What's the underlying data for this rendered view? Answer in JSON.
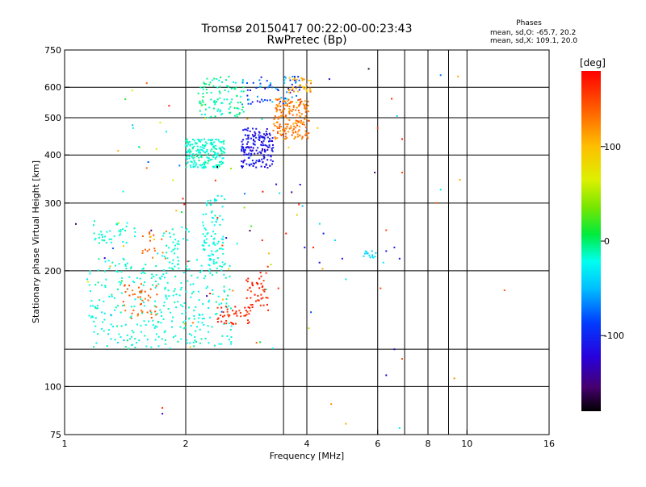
{
  "chart_data": {
    "type": "scatter",
    "title": "Tromsø 20150417 00:22:00-00:23:43",
    "subtitle": "RwPretec (Bp)",
    "xlabel": "Frequency [MHz]",
    "ylabel": "Stationary phase Virtual Height [km]",
    "x_scale": "log2",
    "y_scale": "log",
    "xlim": [
      1,
      16
    ],
    "ylim": [
      75,
      750
    ],
    "x_ticks": [
      1,
      2,
      4,
      6,
      8,
      10,
      16
    ],
    "x_tick_labels": [
      "1",
      "2",
      "4",
      "6",
      "8",
      "10",
      "16"
    ],
    "y_ticks": [
      75,
      100,
      200,
      300,
      400,
      500,
      600,
      750
    ],
    "y_tick_labels": [
      "75",
      "100",
      "200",
      "300",
      "400",
      "500",
      "600",
      "750"
    ],
    "x_gridlines": [
      2,
      4,
      6,
      8,
      10
    ],
    "x_minor_gridlines": [
      3.5,
      7,
      9
    ],
    "y_gridlines": [
      100,
      200,
      300,
      400,
      500,
      600
    ],
    "y_minor_gridlines": [
      125
    ],
    "grid": true,
    "stats_header": "Phases",
    "stats": [
      "mean, sd,O: -65.7, 20.2",
      "mean, sd,X: 109.1, 20.0"
    ],
    "colorbar": {
      "label": "[deg]",
      "range": [
        -180,
        180
      ],
      "ticks": [
        100,
        0,
        -100
      ],
      "tick_labels": [
        "100",
        "0",
        "-100"
      ]
    },
    "clusters": [
      {
        "x": [
          2.0,
          2.5
        ],
        "y": [
          370,
          440
        ],
        "phase": [
          -25,
          -5
        ],
        "n": 200
      },
      {
        "x": [
          2.15,
          2.8
        ],
        "y": [
          500,
          640
        ],
        "phase": [
          -25,
          5
        ],
        "n": 100
      },
      {
        "x": [
          2.75,
          3.3
        ],
        "y": [
          370,
          470
        ],
        "phase": [
          -130,
          -95
        ],
        "n": 170
      },
      {
        "x": [
          2.75,
          3.9
        ],
        "y": [
          540,
          640
        ],
        "phase": [
          -130,
          -40
        ],
        "n": 70
      },
      {
        "x": [
          3.3,
          4.05
        ],
        "y": [
          440,
          560
        ],
        "phase": [
          110,
          150
        ],
        "n": 180
      },
      {
        "x": [
          3.6,
          4.1
        ],
        "y": [
          580,
          640
        ],
        "phase": [
          90,
          135
        ],
        "n": 35
      },
      {
        "x": [
          1.15,
          2.6
        ],
        "y": [
          125,
          215
        ],
        "phase": [
          -30,
          -8
        ],
        "n": 330
      },
      {
        "x": [
          1.4,
          1.7
        ],
        "y": [
          150,
          185
        ],
        "phase": [
          125,
          150
        ],
        "n": 45
      },
      {
        "x": [
          1.75,
          2.05
        ],
        "y": [
          205,
          260
        ],
        "phase": [
          -25,
          -10
        ],
        "n": 35
      },
      {
        "x": [
          1.15,
          1.5
        ],
        "y": [
          235,
          270
        ],
        "phase": [
          -25,
          -10
        ],
        "n": 40
      },
      {
        "x": [
          2.2,
          2.5
        ],
        "y": [
          200,
          320
        ],
        "phase": [
          -30,
          -10
        ],
        "n": 90
      },
      {
        "x": [
          2.4,
          2.9
        ],
        "y": [
          145,
          162
        ],
        "phase": [
          150,
          175
        ],
        "n": 45
      },
      {
        "x": [
          2.8,
          3.2
        ],
        "y": [
          160,
          200
        ],
        "phase": [
          150,
          175
        ],
        "n": 45
      },
      {
        "x": [
          1.55,
          1.8
        ],
        "y": [
          215,
          255
        ],
        "phase": [
          120,
          150
        ],
        "n": 18
      },
      {
        "x": [
          5.5,
          5.95
        ],
        "y": [
          215,
          225
        ],
        "phase": [
          -45,
          -30
        ],
        "n": 14
      },
      {
        "x": [
          1.05,
          4.5
        ],
        "y": [
          125,
          600
        ],
        "phase": [
          -180,
          180
        ],
        "n": 80
      }
    ],
    "sparse_points": [
      {
        "x": 1.6,
        "y": 615,
        "phase": 140
      },
      {
        "x": 1.48,
        "y": 470,
        "phase": -30
      },
      {
        "x": 1.53,
        "y": 420,
        "phase": -30
      },
      {
        "x": 1.6,
        "y": 370,
        "phase": 140
      },
      {
        "x": 1.79,
        "y": 460,
        "phase": -30
      },
      {
        "x": 1.75,
        "y": 88,
        "phase": 160
      },
      {
        "x": 1.75,
        "y": 85,
        "phase": -120
      },
      {
        "x": 3.0,
        "y": 130,
        "phase": 140
      },
      {
        "x": 3.1,
        "y": 240,
        "phase": 165
      },
      {
        "x": 3.2,
        "y": 205,
        "phase": 160
      },
      {
        "x": 3.4,
        "y": 180,
        "phase": 160
      },
      {
        "x": 3.55,
        "y": 250,
        "phase": 165
      },
      {
        "x": 3.85,
        "y": 335,
        "phase": -120
      },
      {
        "x": 3.95,
        "y": 230,
        "phase": -120
      },
      {
        "x": 4.15,
        "y": 230,
        "phase": 170
      },
      {
        "x": 4.3,
        "y": 210,
        "phase": -110
      },
      {
        "x": 4.9,
        "y": 215,
        "phase": -110
      },
      {
        "x": 4.4,
        "y": 250,
        "phase": -110
      },
      {
        "x": 4.7,
        "y": 240,
        "phase": -40
      },
      {
        "x": 5.0,
        "y": 190,
        "phase": -30
      },
      {
        "x": 4.6,
        "y": 90,
        "phase": 120
      },
      {
        "x": 5.0,
        "y": 80,
        "phase": 110
      },
      {
        "x": 4.55,
        "y": 630,
        "phase": -130
      },
      {
        "x": 5.7,
        "y": 670,
        "phase": -170
      },
      {
        "x": 6.0,
        "y": 470,
        "phase": 150
      },
      {
        "x": 5.9,
        "y": 360,
        "phase": -150
      },
      {
        "x": 6.5,
        "y": 560,
        "phase": 160
      },
      {
        "x": 6.7,
        "y": 505,
        "phase": -40
      },
      {
        "x": 6.9,
        "y": 440,
        "phase": 170
      },
      {
        "x": 6.9,
        "y": 360,
        "phase": 150
      },
      {
        "x": 6.3,
        "y": 225,
        "phase": -110
      },
      {
        "x": 6.6,
        "y": 230,
        "phase": -110
      },
      {
        "x": 6.2,
        "y": 210,
        "phase": -30
      },
      {
        "x": 6.8,
        "y": 215,
        "phase": -110
      },
      {
        "x": 6.1,
        "y": 180,
        "phase": 150
      },
      {
        "x": 6.3,
        "y": 255,
        "phase": 150
      },
      {
        "x": 6.6,
        "y": 125,
        "phase": -130
      },
      {
        "x": 6.9,
        "y": 118,
        "phase": 150
      },
      {
        "x": 6.3,
        "y": 107,
        "phase": -130
      },
      {
        "x": 6.8,
        "y": 78,
        "phase": -30
      },
      {
        "x": 8.6,
        "y": 645,
        "phase": -70
      },
      {
        "x": 9.5,
        "y": 640,
        "phase": 110
      },
      {
        "x": 8.6,
        "y": 325,
        "phase": -30
      },
      {
        "x": 9.6,
        "y": 345,
        "phase": 110
      },
      {
        "x": 9.3,
        "y": 105,
        "phase": 120
      },
      {
        "x": 12.4,
        "y": 178,
        "phase": 140
      },
      {
        "x": 8.4,
        "y": 300,
        "phase": 140
      }
    ]
  }
}
